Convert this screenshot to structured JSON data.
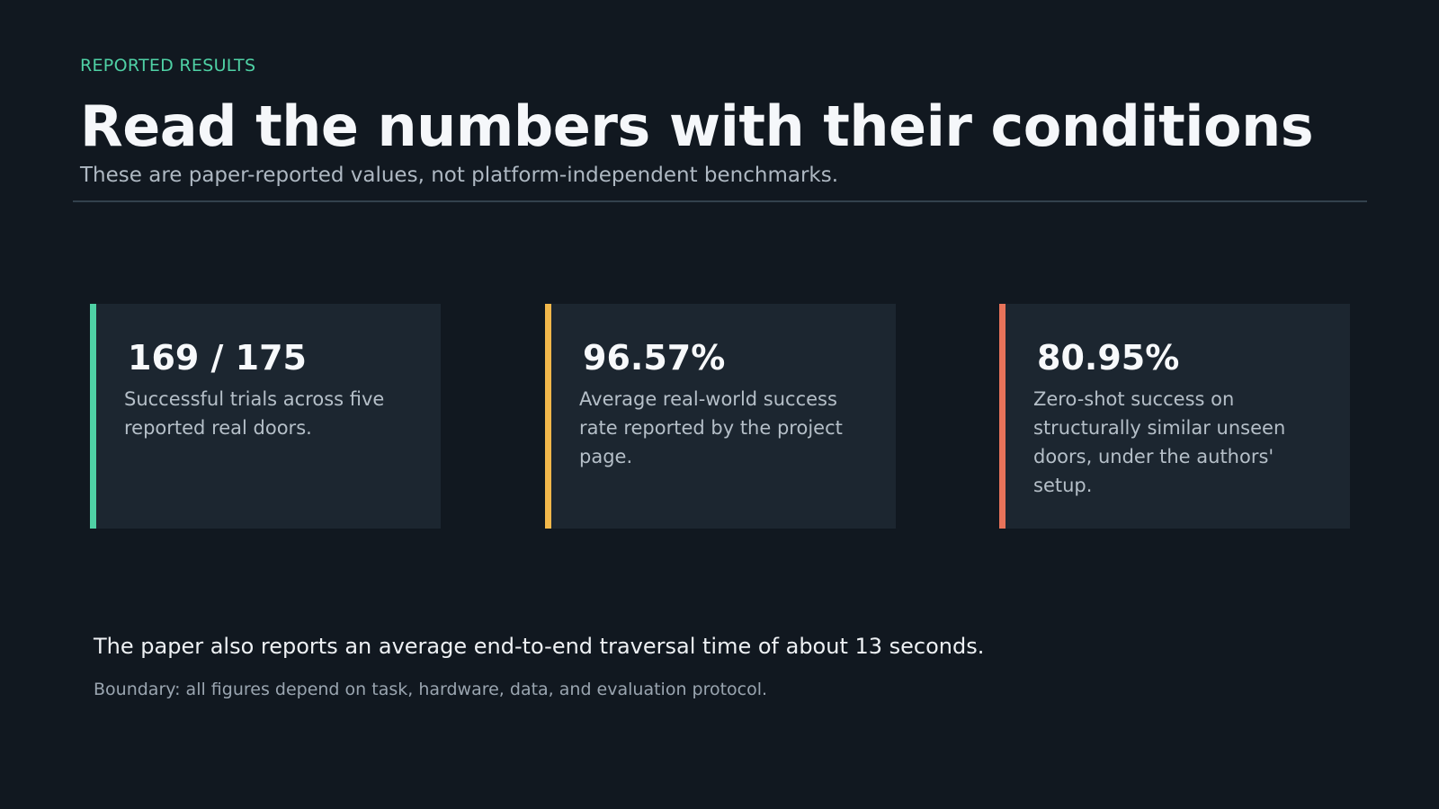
{
  "header": {
    "eyebrow": "REPORTED RESULTS",
    "title": "Read the numbers with their conditions",
    "subtitle": "These are paper-reported values, not platform-independent benchmarks."
  },
  "cards": [
    {
      "value": "169 / 175",
      "description": "Successful trials across five reported real doors.",
      "accent": "#4fd1a5"
    },
    {
      "value": "96.57%",
      "description": "Average real-world success rate reported by the project page.",
      "accent": "#f2b84b"
    },
    {
      "value": "80.95%",
      "description": "Zero-shot success on structurally similar unseen doors, under the authors' setup.",
      "accent": "#e8735a"
    }
  ],
  "footer": {
    "note": "The paper also reports an average end-to-end traversal time of about 13 seconds.",
    "boundary": "Boundary: all figures depend on task, hardware, data, and evaluation protocol."
  }
}
